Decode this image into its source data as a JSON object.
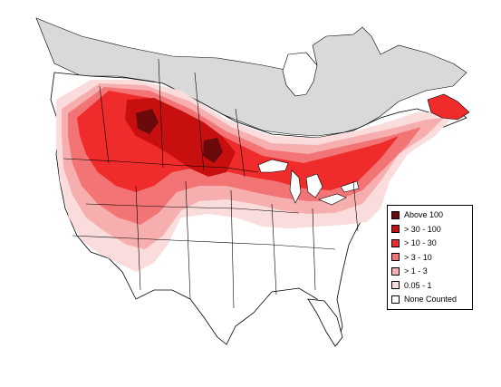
{
  "legend": {
    "items": [
      {
        "label": "Above 100",
        "color": "#6b0a0a"
      },
      {
        "label": "> 30 - 100",
        "color": "#c80f0f"
      },
      {
        "label": "> 10 - 30",
        "color": "#ef2b2b"
      },
      {
        "label": "> 3 - 10",
        "color": "#f27474"
      },
      {
        "label": "> 1 - 3",
        "color": "#f7aeae"
      },
      {
        "label": "0.05 - 1",
        "color": "#fbdcdc"
      },
      {
        "label": "None Counted",
        "color": "#ffffff"
      }
    ]
  },
  "colors": {
    "not_surveyed": "#d9d9d9",
    "boundary": "#000000",
    "ocean": "#ffffff"
  }
}
